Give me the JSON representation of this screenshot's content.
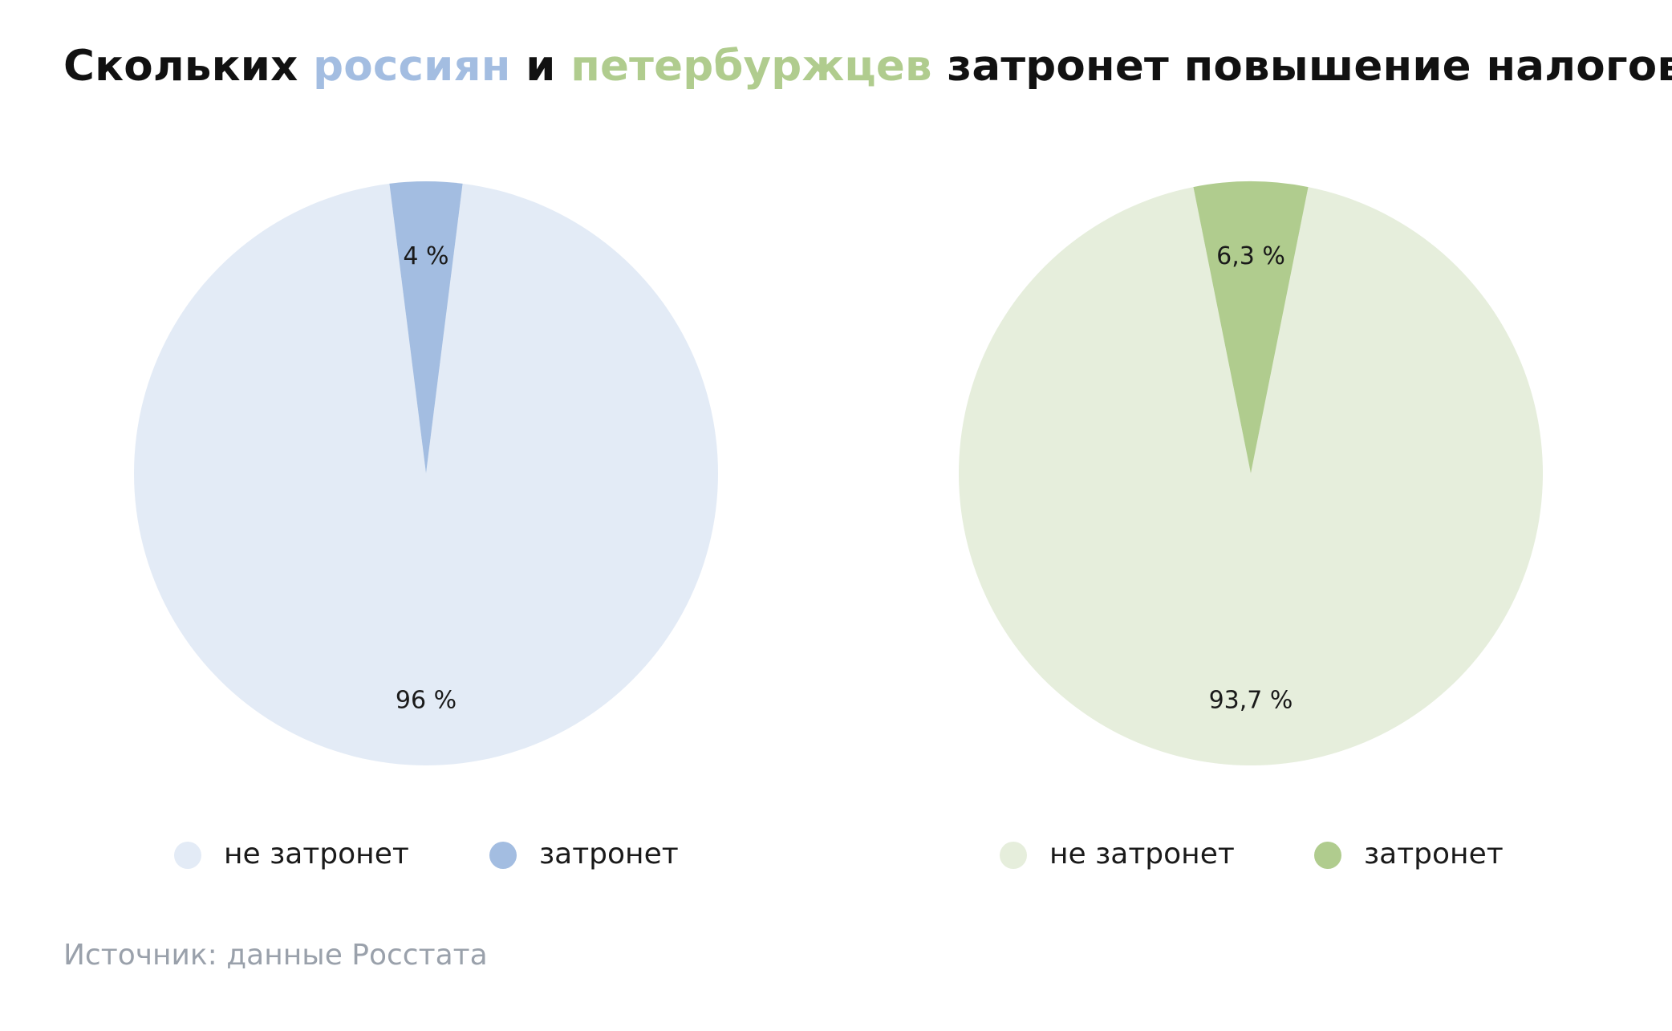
{
  "title": {
    "part1": "Скольких ",
    "part2": "россиян",
    "part3": " и ",
    "part4": "петербуржцев",
    "part5": " затронет повышение налогов?"
  },
  "source": "Источник: данные Росстата",
  "chart_data": [
    {
      "type": "pie",
      "slices": [
        {
          "label": "не затронет",
          "value": 96,
          "value_label": "96 %",
          "color": "#e3ebf6"
        },
        {
          "label": "затронет",
          "value": 4,
          "value_label": "4 %",
          "color": "#a3bde1"
        }
      ],
      "legend": "bottom"
    },
    {
      "type": "pie",
      "slices": [
        {
          "label": "не затронет",
          "value": 93.7,
          "value_label": "93,7 %",
          "color": "#e6eedc"
        },
        {
          "label": "затронет",
          "value": 6.3,
          "value_label": "6,3 %",
          "color": "#b0cc8e"
        }
      ],
      "legend": "bottom"
    }
  ]
}
